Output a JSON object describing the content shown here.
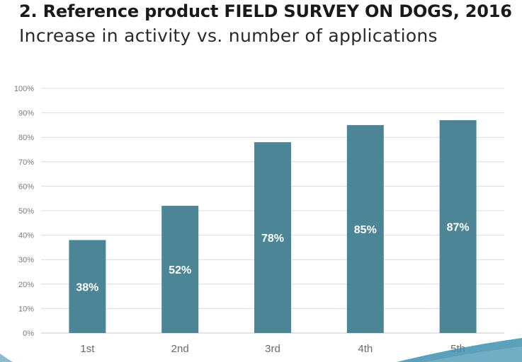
{
  "header": {
    "title": "2. Reference product FIELD SURVEY ON DOGS, 2016",
    "subtitle": "Increase in activity vs. number of applications"
  },
  "colors": {
    "bar": "#4b8596",
    "bar_label": "#ffffff",
    "corner_accent": "#3f8fae"
  },
  "chart_data": {
    "type": "bar",
    "title": "Increase in activity vs. number of applications",
    "xlabel": "",
    "ylabel": "",
    "categories": [
      "1st",
      "2nd",
      "3rd",
      "4th",
      "5th"
    ],
    "values": [
      38,
      52,
      78,
      85,
      87
    ],
    "data_labels": [
      "38%",
      "52%",
      "78%",
      "85%",
      "87%"
    ],
    "ylim": [
      0,
      100
    ],
    "yticks": [
      0,
      10,
      20,
      30,
      40,
      50,
      60,
      70,
      80,
      90,
      100
    ],
    "ytick_labels": [
      "0%",
      "10%",
      "20%",
      "30%",
      "40%",
      "50%",
      "60%",
      "70%",
      "80%",
      "90%",
      "100%"
    ],
    "grid": true,
    "legend": "none"
  }
}
